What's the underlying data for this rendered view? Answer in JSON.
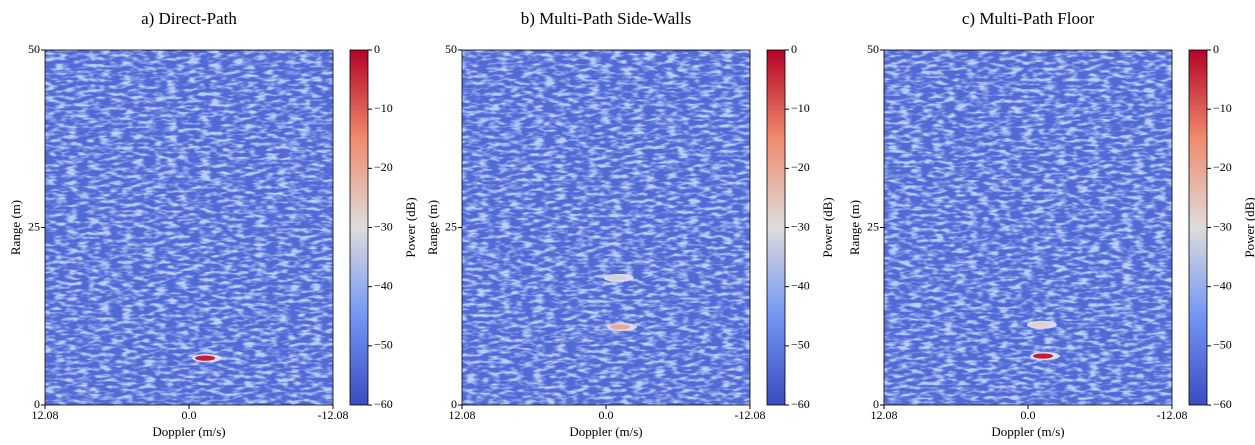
{
  "chart_data": [
    {
      "type": "heatmap",
      "title": "a) Direct-Path",
      "xlabel": "Doppler (m/s)",
      "ylabel": "Range (m)",
      "colorbar_label": "Power (dB)",
      "colormap": "coolwarm",
      "xlim": [
        12.08,
        -12.08
      ],
      "xticks": [
        12.08,
        {
          "value": 0,
          "label": "0.0"
        },
        -12.08
      ],
      "ylim": [
        0,
        50
      ],
      "yticks": [
        0,
        25,
        50
      ],
      "clim": [
        -60,
        0
      ],
      "cticks": [
        {
          "value": -60,
          "label": "−60"
        },
        {
          "value": -50,
          "label": "−50"
        },
        {
          "value": -40,
          "label": "−40"
        },
        {
          "value": -30,
          "label": "−30"
        },
        {
          "value": -20,
          "label": "−20"
        },
        {
          "value": -10,
          "label": "−10"
        },
        0
      ],
      "peaks": [
        {
          "x": -1.35,
          "y": 6.6,
          "value": -3
        }
      ]
    },
    {
      "type": "heatmap",
      "title": "b) Multi-Path Side-Walls",
      "xlabel": "Doppler (m/s)",
      "ylabel": "Range (m)",
      "colorbar_label": "Power (dB)",
      "colormap": "coolwarm",
      "xlim": [
        12.08,
        -12.08
      ],
      "xticks": [
        12.08,
        {
          "value": 0,
          "label": "0.0"
        },
        -12.08
      ],
      "ylim": [
        0,
        50
      ],
      "yticks": [
        0,
        25,
        50
      ],
      "clim": [
        -60,
        0
      ],
      "cticks": [
        {
          "value": -60,
          "label": "−60"
        },
        {
          "value": -50,
          "label": "−50"
        },
        {
          "value": -40,
          "label": "−40"
        },
        {
          "value": -30,
          "label": "−30"
        },
        {
          "value": -20,
          "label": "−20"
        },
        {
          "value": -10,
          "label": "−10"
        },
        0
      ],
      "peaks": [
        {
          "x": -1.17,
          "y": 11.0,
          "value": -20
        },
        {
          "x": -0.9,
          "y": 17.9,
          "value": -32
        }
      ]
    },
    {
      "type": "heatmap",
      "title": "c) Multi-Path Floor",
      "xlabel": "Doppler (m/s)",
      "ylabel": "Range (m)",
      "colorbar_label": "Power (dB)",
      "colormap": "coolwarm",
      "xlim": [
        12.08,
        -12.08
      ],
      "xticks": [
        12.08,
        {
          "value": 0,
          "label": "0.0"
        },
        -12.08
      ],
      "ylim": [
        0,
        50
      ],
      "yticks": [
        0,
        25,
        50
      ],
      "clim": [
        -60,
        0
      ],
      "cticks": [
        {
          "value": -60,
          "label": "−60"
        },
        {
          "value": -50,
          "label": "−50"
        },
        {
          "value": -40,
          "label": "−40"
        },
        {
          "value": -30,
          "label": "−30"
        },
        {
          "value": -20,
          "label": "−20"
        },
        {
          "value": -10,
          "label": "−10"
        },
        0
      ],
      "peaks": [
        {
          "x": -1.26,
          "y": 6.9,
          "value": -3
        },
        {
          "x": -1.0,
          "y": 11.3,
          "value": -28
        }
      ]
    }
  ]
}
